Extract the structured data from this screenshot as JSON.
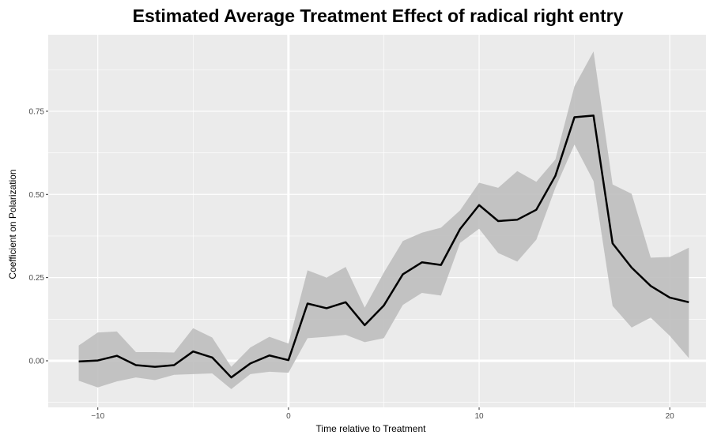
{
  "chart_data": {
    "type": "line",
    "title": "Estimated Average Treatment Effect of radical right entry",
    "xlabel": "Time relative to Treatment",
    "ylabel": "Coefficient on Polarization",
    "xlim": [
      -12.6,
      21.9
    ],
    "ylim": [
      -0.14,
      0.98
    ],
    "x_ticks": [
      -10,
      0,
      10,
      20
    ],
    "x_tick_labels": [
      "−10",
      "0",
      "10",
      "20"
    ],
    "y_ticks": [
      0.0,
      0.25,
      0.5,
      0.75
    ],
    "y_tick_labels": [
      "0.00",
      "0.25",
      "0.50",
      "0.75"
    ],
    "grid": true,
    "reference_lines": {
      "vertical": 0,
      "horizontal": 0
    },
    "colors": {
      "panel": "#ebebeb",
      "grid": "#ffffff",
      "ribbon": "#bebebe",
      "line": "#000000"
    },
    "series": [
      {
        "x": [
          -11,
          -10,
          -9,
          -8,
          -7,
          -6,
          -5,
          -4,
          -3,
          -2,
          -1,
          0,
          1,
          2,
          3,
          4,
          5,
          6,
          7,
          8,
          9,
          10,
          11,
          12,
          13,
          14,
          15,
          16,
          17,
          18,
          19,
          20,
          21
        ],
        "y": [
          -0.002,
          0.001,
          0.015,
          -0.013,
          -0.018,
          -0.013,
          0.028,
          0.01,
          -0.05,
          -0.008,
          0.016,
          0.002,
          0.172,
          0.158,
          0.176,
          0.107,
          0.166,
          0.26,
          0.296,
          0.288,
          0.396,
          0.468,
          0.42,
          0.424,
          0.454,
          0.556,
          0.732,
          0.737,
          0.353,
          0.28,
          0.225,
          0.19,
          0.176
        ],
        "lower": [
          -0.06,
          -0.08,
          -0.062,
          -0.05,
          -0.058,
          -0.042,
          -0.04,
          -0.038,
          -0.085,
          -0.04,
          -0.033,
          -0.036,
          0.068,
          0.072,
          0.078,
          0.056,
          0.068,
          0.168,
          0.204,
          0.196,
          0.354,
          0.397,
          0.324,
          0.298,
          0.364,
          0.52,
          0.65,
          0.54,
          0.165,
          0.1,
          0.13,
          0.075,
          0.008
        ],
        "upper": [
          0.046,
          0.085,
          0.088,
          0.026,
          0.026,
          0.025,
          0.098,
          0.07,
          -0.018,
          0.04,
          0.072,
          0.052,
          0.272,
          0.25,
          0.282,
          0.16,
          0.265,
          0.36,
          0.385,
          0.4,
          0.452,
          0.535,
          0.52,
          0.57,
          0.538,
          0.605,
          0.825,
          0.93,
          0.53,
          0.502,
          0.31,
          0.312,
          0.34
        ]
      }
    ]
  }
}
